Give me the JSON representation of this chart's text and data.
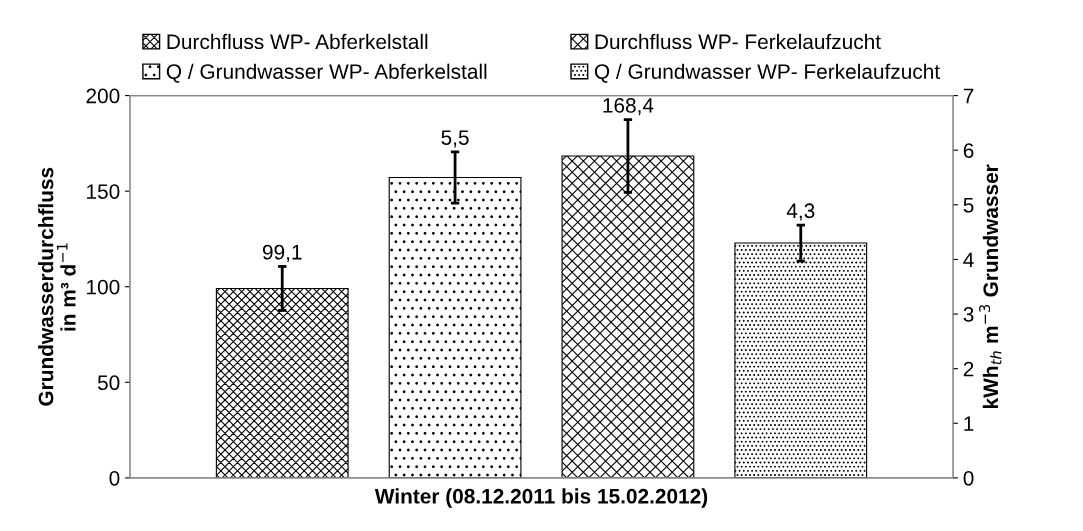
{
  "chart_data": {
    "type": "bar",
    "xlabel": "Winter (08.12.2011 bis 15.02.2012)",
    "ylabel": "Grundwasserdurchfluss\nin m³ d$^{−1}$",
    "y2label": "kWh$_{th}$ m$^{−3}$ Grundwasser",
    "categories": [
      null
    ],
    "series": [
      {
        "name": "Durchfluss WP- Abferkelstall",
        "color": "#000000",
        "values": [
          99.1
        ],
        "errors": [
          11.5
        ],
        "value_labels": [
          "99,1"
        ]
      },
      {
        "name": "Q / Grundwasser WP- Abferkelstall",
        "color": "#000000",
        "values": [
          5.5
        ],
        "errors": [
          0.47
        ],
        "value_labels": [
          "5,5"
        ],
        "axis": "y2"
      },
      {
        "name": "Durchfluss WP- Ferkelaufzucht",
        "color": "#000000",
        "values": [
          168.4
        ],
        "errors": [
          19
        ],
        "value_labels": [
          "168,4"
        ]
      },
      {
        "name": "Q / Grundwasser WP- Ferkelaufzucht",
        "color": "#000000",
        "values": [
          4.3
        ],
        "errors": [
          0.33
        ],
        "value_labels": [
          "4,3"
        ],
        "axis": "y2"
      }
    ],
    "ylim": [
      0,
      200
    ],
    "yticks": [
      0,
      50,
      100,
      150,
      200
    ],
    "y2lim": [
      0,
      7
    ],
    "y2ticks": [
      0,
      1,
      2,
      3,
      4,
      5,
      6,
      7
    ],
    "legend": "top",
    "grid": false
  }
}
